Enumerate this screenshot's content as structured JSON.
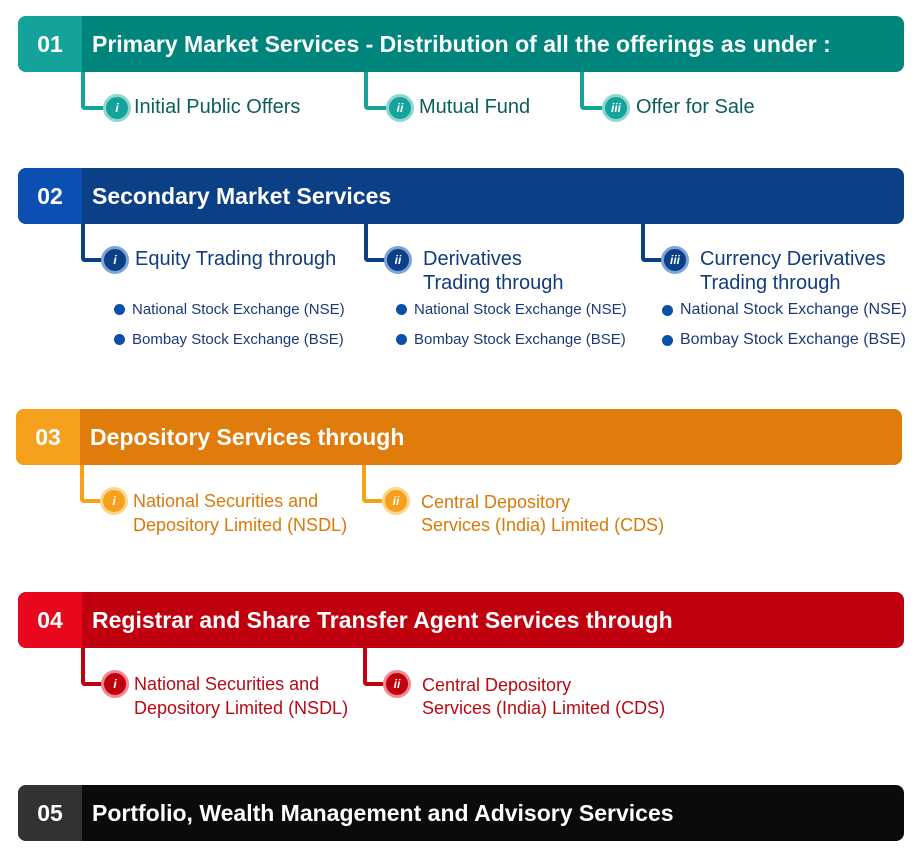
{
  "colors": {
    "teal_light": "#14a39a",
    "teal_dark": "#00857c",
    "teal_text": "#0d5d58",
    "blue_light": "#0a4fb1",
    "blue_dark": "#0b3f86",
    "blue_text": "#123c7c",
    "orange_light": "#f5a11d",
    "orange_dark": "#e07c0c",
    "orange_text": "#d97a07",
    "red_light": "#e8071c",
    "red_dark": "#c0000f",
    "red_text": "#b80a15",
    "black_light": "#323232",
    "black_dark": "#0b0b0b"
  },
  "services": [
    {
      "number": "01",
      "title": "Primary Market Services - Distribution of all the offerings as under :",
      "items": [
        {
          "roman": "i",
          "label": "Initial Public Offers"
        },
        {
          "roman": "ii",
          "label": "Mutual Fund"
        },
        {
          "roman": "iii",
          "label": "Offer for Sale"
        }
      ]
    },
    {
      "number": "02",
      "title": "Secondary Market Services",
      "items": [
        {
          "roman": "i",
          "label_line1": "Equity Trading through",
          "label_line2": "",
          "exchanges": [
            "National Stock Exchange (NSE)",
            "Bombay Stock Exchange (BSE)"
          ]
        },
        {
          "roman": "ii",
          "label_line1": "Derivatives",
          "label_line2": "Trading through",
          "exchanges": [
            "National Stock Exchange (NSE)",
            "Bombay Stock Exchange (BSE)"
          ]
        },
        {
          "roman": "iii",
          "label_line1": "Currency Derivatives",
          "label_line2": "Trading through",
          "exchanges": [
            "National Stock Exchange (NSE)",
            "Bombay Stock Exchange (BSE)"
          ]
        }
      ]
    },
    {
      "number": "03",
      "title": "Depository Services through",
      "items": [
        {
          "roman": "i",
          "label_line1": "National Securities and",
          "label_line2": "Depository Limited (NSDL)"
        },
        {
          "roman": "ii",
          "label_line1": "Central Depository",
          "label_line2": "Services (India) Limited (CDS)"
        }
      ]
    },
    {
      "number": "04",
      "title": "Registrar and Share Transfer Agent Services through",
      "items": [
        {
          "roman": "i",
          "label_line1": "National Securities and",
          "label_line2": "Depository Limited (NSDL)"
        },
        {
          "roman": "ii",
          "label_line1": "Central Depository",
          "label_line2": "Services (India) Limited (CDS)"
        }
      ]
    },
    {
      "number": "05",
      "title": "Portfolio, Wealth Management and Advisory Services",
      "items": []
    }
  ]
}
